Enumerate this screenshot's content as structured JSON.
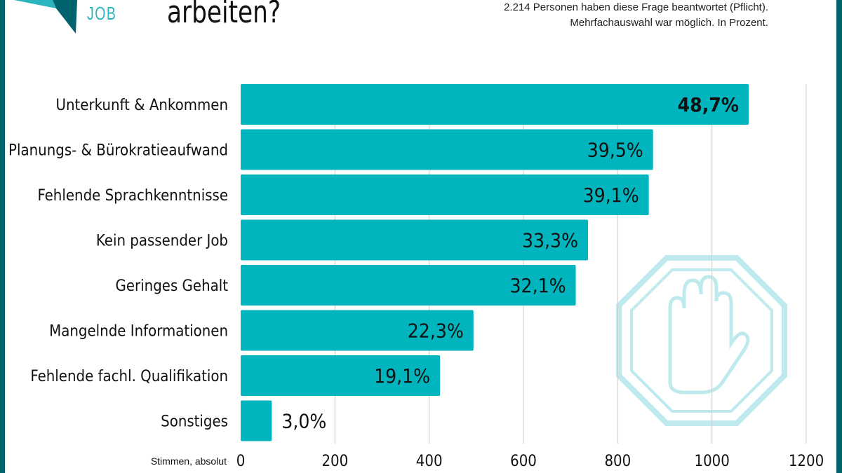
{
  "header": {
    "title": "arbeiten?",
    "logo_text": "JOB",
    "note_line1": "2.214 Personen haben diese Frage beantwortet (Pflicht).",
    "note_line2": "Mehrfachauswahl war möglich. In Prozent."
  },
  "colors": {
    "bar": "#00b5bd",
    "border": "#00636e",
    "stop_icon": "#bfeaed"
  },
  "icons": [
    "stop-hand-icon"
  ],
  "chart_data": {
    "type": "bar",
    "orientation": "horizontal",
    "categories": [
      "Unterkunft & Ankommen",
      "Planungs- & Bürokratieaufwand",
      "Fehlende Sprachkenntnisse",
      "Kein passender Job",
      "Geringes Gehalt",
      "Mangelnde Informationen",
      "Fehlende fachl. Qualifikation",
      "Sonstiges"
    ],
    "values": [
      1078,
      875,
      866,
      737,
      711,
      494,
      423,
      66
    ],
    "data_labels": [
      "48,7%",
      "39,5%",
      "39,1%",
      "33,3%",
      "32,1%",
      "22,3%",
      "19,1%",
      "3,0%"
    ],
    "xlabel": "Stimmen, absolut",
    "xlim": [
      0,
      1200
    ],
    "xticks": [
      "0",
      "200",
      "400",
      "600",
      "800",
      "1000",
      "1200"
    ],
    "grid": true
  }
}
